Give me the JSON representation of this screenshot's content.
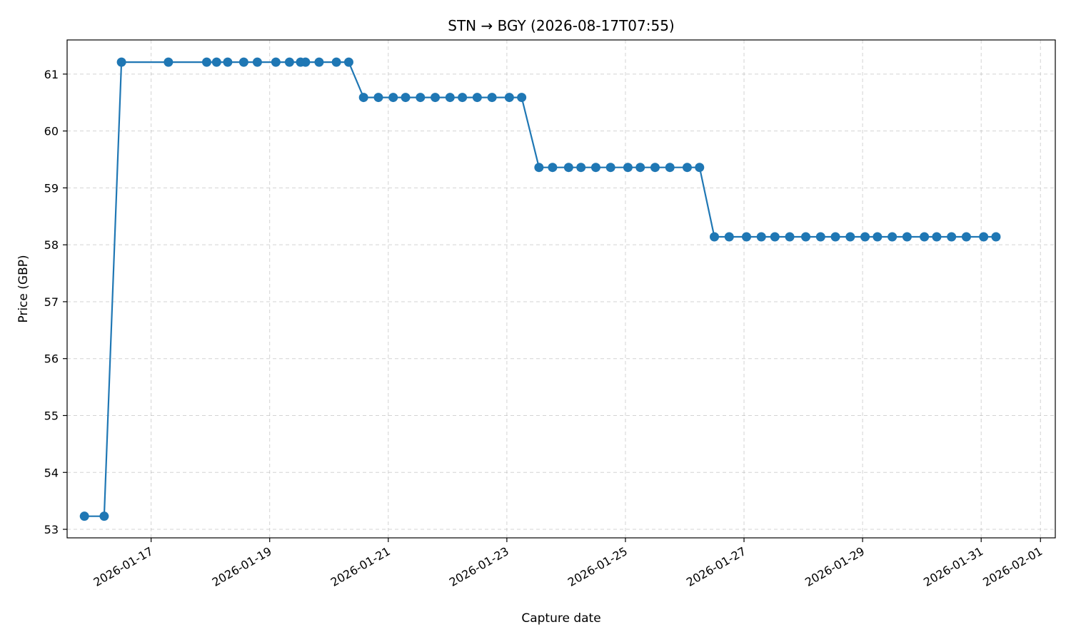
{
  "chart_data": {
    "type": "line",
    "title": "STN → BGY (2026-08-17T07:55)",
    "xlabel": "Capture date",
    "ylabel": "Price (GBP)",
    "x_tick_labels": [
      "2026-01-17",
      "2026-01-19",
      "2026-01-21",
      "2026-01-23",
      "2026-01-25",
      "2026-01-27",
      "2026-01-29",
      "2026-01-31",
      "2026-02-01"
    ],
    "x_ticks": [
      "2026-01-17",
      "2026-01-19",
      "2026-01-21",
      "2026-01-23",
      "2026-01-25",
      "2026-01-27",
      "2026-01-29",
      "2026-01-31",
      "2026-02-01"
    ],
    "y_ticks": [
      53,
      54,
      55,
      56,
      57,
      58,
      59,
      60,
      61
    ],
    "xlim": [
      "2026-01-15T14:00",
      "2026-02-01T06:00"
    ],
    "ylim": [
      52.85,
      61.6
    ],
    "grid": true,
    "color": "#1f77b4",
    "series": [
      {
        "x": [
          "2026-01-15T21:00",
          "2026-01-16T05:00",
          "2026-01-16T12:00",
          "2026-01-17T07:00",
          "2026-01-17T22:30",
          "2026-01-18T02:30",
          "2026-01-18T07:00",
          "2026-01-18T13:30",
          "2026-01-18T19:00",
          "2026-01-19T02:30",
          "2026-01-19T08:00",
          "2026-01-19T12:30",
          "2026-01-19T14:30",
          "2026-01-19T20:00",
          "2026-01-20T03:00",
          "2026-01-20T08:00",
          "2026-01-20T14:00",
          "2026-01-20T20:00",
          "2026-01-21T02:00",
          "2026-01-21T07:00",
          "2026-01-21T13:00",
          "2026-01-21T19:00",
          "2026-01-22T01:00",
          "2026-01-22T06:00",
          "2026-01-22T12:00",
          "2026-01-22T18:00",
          "2026-01-23T01:00",
          "2026-01-23T06:00",
          "2026-01-23T13:00",
          "2026-01-23T18:30",
          "2026-01-24T01:00",
          "2026-01-24T06:00",
          "2026-01-24T12:00",
          "2026-01-24T18:00",
          "2026-01-25T01:00",
          "2026-01-25T06:00",
          "2026-01-25T12:00",
          "2026-01-25T18:00",
          "2026-01-26T01:00",
          "2026-01-26T06:00",
          "2026-01-26T12:00",
          "2026-01-26T18:00",
          "2026-01-27T01:00",
          "2026-01-27T07:00",
          "2026-01-27T12:30",
          "2026-01-27T18:30",
          "2026-01-28T01:00",
          "2026-01-28T07:00",
          "2026-01-28T13:00",
          "2026-01-28T19:00",
          "2026-01-29T01:00",
          "2026-01-29T06:00",
          "2026-01-29T12:00",
          "2026-01-29T18:00",
          "2026-01-30T01:00",
          "2026-01-30T06:00",
          "2026-01-30T12:00",
          "2026-01-30T18:00",
          "2026-01-31T01:00",
          "2026-01-31T06:00"
        ],
        "y": [
          53.23,
          53.23,
          61.21,
          61.21,
          61.21,
          61.21,
          61.21,
          61.21,
          61.21,
          61.21,
          61.21,
          61.21,
          61.21,
          61.21,
          61.21,
          61.21,
          60.59,
          60.59,
          60.59,
          60.59,
          60.59,
          60.59,
          60.59,
          60.59,
          60.59,
          60.59,
          60.59,
          60.59,
          59.36,
          59.36,
          59.36,
          59.36,
          59.36,
          59.36,
          59.36,
          59.36,
          59.36,
          59.36,
          59.36,
          59.36,
          58.14,
          58.14,
          58.14,
          58.14,
          58.14,
          58.14,
          58.14,
          58.14,
          58.14,
          58.14,
          58.14,
          58.14,
          58.14,
          58.14,
          58.14,
          58.14,
          58.14,
          58.14,
          58.14,
          58.14
        ]
      }
    ]
  }
}
